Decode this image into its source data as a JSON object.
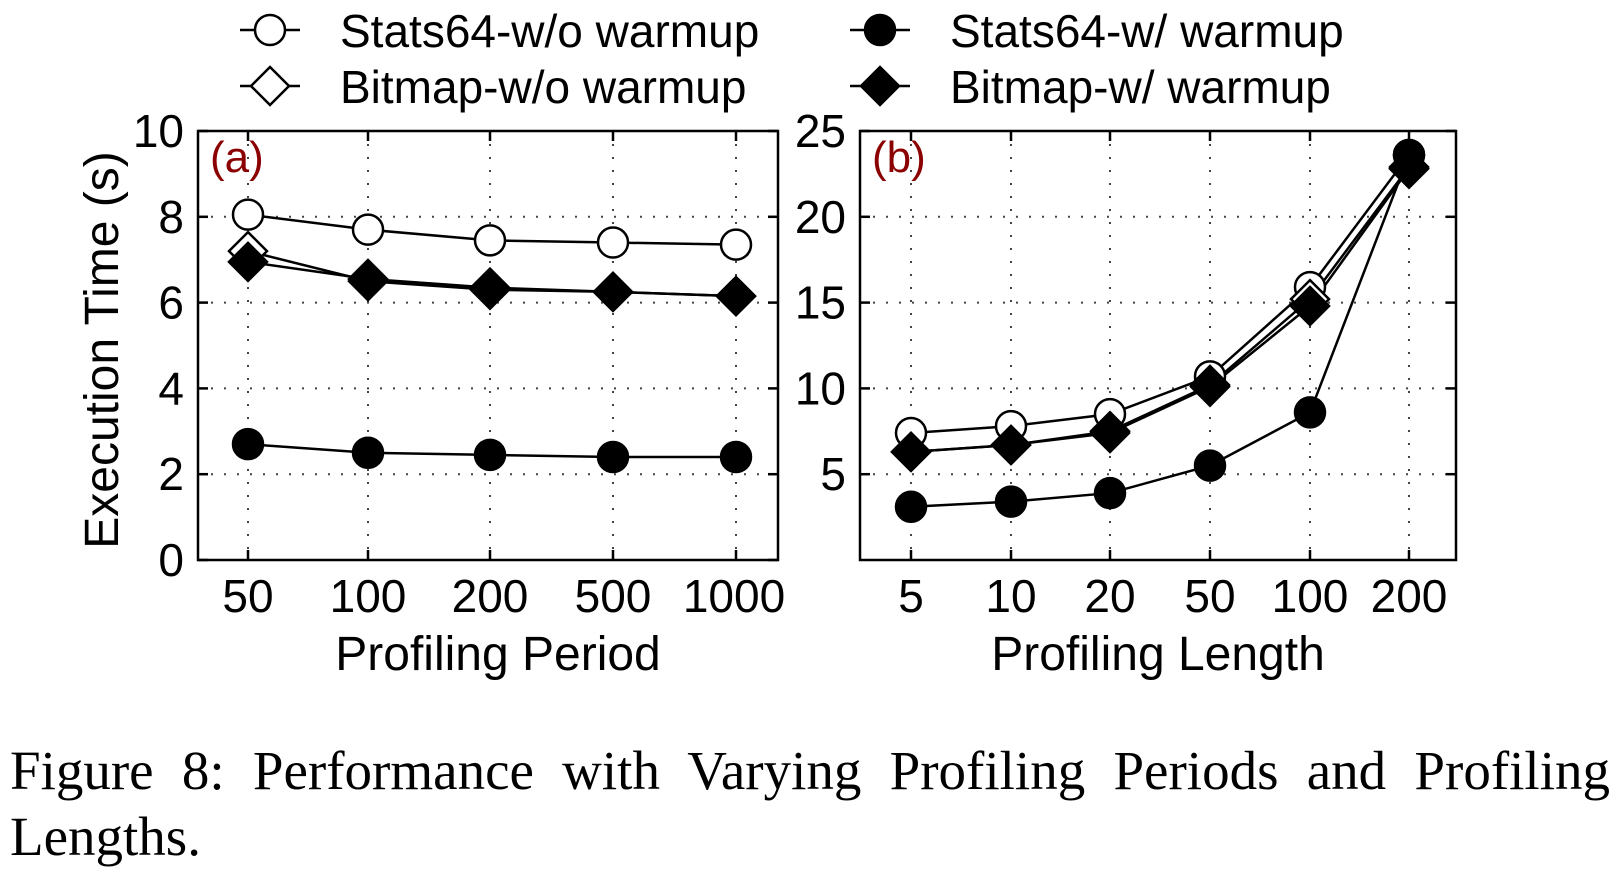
{
  "legend": [
    {
      "label": "Stats64-w/o warmup",
      "marker": "circle",
      "filled": false
    },
    {
      "label": "Stats64-w/ warmup",
      "marker": "circle",
      "filled": true
    },
    {
      "label": "Bitmap-w/o warmup",
      "marker": "diamond",
      "filled": false
    },
    {
      "label": "Bitmap-w/ warmup",
      "marker": "diamond",
      "filled": true
    }
  ],
  "y_axis_label": "Execution Time (s)",
  "colors": {
    "panel_label": "#8b0000",
    "line": "#000000",
    "grid": "#444444"
  },
  "caption": "Figure 8: Performance with Varying Profiling Periods and Profiling Lengths.",
  "chart_data": [
    {
      "type": "line",
      "panel_label": "(a)",
      "categories": [
        "50",
        "100",
        "200",
        "500",
        "1000"
      ],
      "xlabel": "Profiling Period",
      "ylabel": "Execution Time (s)",
      "ylim": [
        0,
        10
      ],
      "yticks": [
        0,
        2,
        4,
        6,
        8,
        10
      ],
      "grid": true,
      "series": [
        {
          "name": "Stats64-w/o warmup",
          "marker": "circle",
          "filled": false,
          "values": [
            8.05,
            7.7,
            7.45,
            7.4,
            7.35
          ]
        },
        {
          "name": "Bitmap-w/o warmup",
          "marker": "diamond",
          "filled": false,
          "values": [
            7.2,
            6.5,
            6.3,
            6.25,
            6.15
          ]
        },
        {
          "name": "Bitmap-w/ warmup",
          "marker": "diamond",
          "filled": true,
          "values": [
            6.95,
            6.55,
            6.35,
            6.25,
            6.15
          ]
        },
        {
          "name": "Stats64-w/ warmup",
          "marker": "circle",
          "filled": true,
          "values": [
            2.7,
            2.5,
            2.45,
            2.4,
            2.4
          ]
        }
      ]
    },
    {
      "type": "line",
      "panel_label": "(b)",
      "categories": [
        "5",
        "10",
        "20",
        "50",
        "100",
        "200"
      ],
      "xlabel": "Profiling Length",
      "ylabel": "Execution Time (s)",
      "ylim": [
        0,
        25
      ],
      "yticks": [
        5,
        10,
        15,
        20,
        25
      ],
      "grid": true,
      "series": [
        {
          "name": "Stats64-w/o warmup",
          "marker": "circle",
          "filled": false,
          "values": [
            7.4,
            7.8,
            8.5,
            10.7,
            15.9,
            23.6
          ]
        },
        {
          "name": "Bitmap-w/o warmup",
          "marker": "diamond",
          "filled": false,
          "values": [
            6.3,
            6.7,
            7.5,
            10.2,
            15.2,
            22.9
          ]
        },
        {
          "name": "Bitmap-w/ warmup",
          "marker": "diamond",
          "filled": true,
          "values": [
            6.3,
            6.7,
            7.4,
            10.1,
            14.8,
            22.8
          ]
        },
        {
          "name": "Stats64-w/ warmup",
          "marker": "circle",
          "filled": true,
          "values": [
            3.1,
            3.4,
            3.9,
            5.5,
            8.6,
            23.6
          ]
        }
      ]
    }
  ]
}
